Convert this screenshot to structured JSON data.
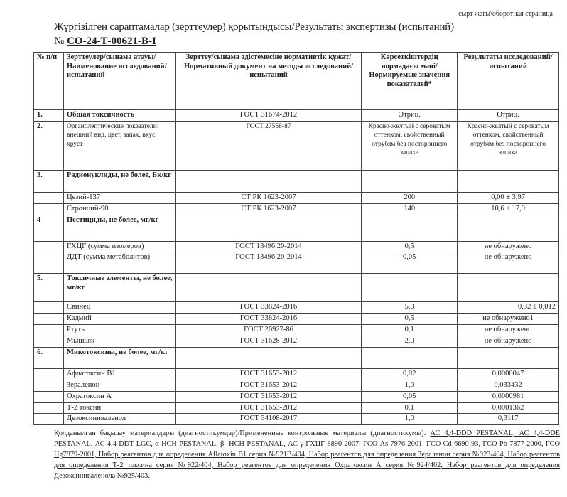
{
  "header": {
    "corner_note": "сырт жағы\\оборотная страница",
    "title": "Жүргізілген сараптамалар (зерттеулер) қорытындысы/Результаты экспертизы (испытаний)",
    "number_prefix": "№",
    "number": "СО-24-Т-00621-В-І"
  },
  "table": {
    "columns": [
      "№ п/п",
      "Зерттеулер/сынама атауы/Наименование исследований/ испытаний",
      "Зерттеу/сынама әдістемесіне нормативтік құжат/Нормативный документ на методы исследований/ испытаний",
      "Көрсеткіштердің нормадағы мәні/Нормируемые значения показателей*",
      "Результаты исследований/ испытаний"
    ],
    "rows": [
      {
        "num": "1.",
        "name": "Общая токсичность",
        "doc": "ГОСТ 31674-2012",
        "norm": "Отриц.",
        "result": "Отриц.",
        "bold": true
      },
      {
        "num": "2.",
        "name": "Органолептические показатели: внешний вид, цвет, запах, вкус, хруст",
        "doc": "ГОСТ 27558-87",
        "norm": "Красно-желтый с сероватым оттенком, свойственный отрубям без постороннего запаха",
        "result": "Красно-желтый с сероватым оттенком, свойственный отрубям без постороннего запаха"
      },
      {
        "num": "3.",
        "name": "Радионуклиды, не более, Бк/кг",
        "doc": "",
        "norm": "",
        "result": "",
        "bold": true
      },
      {
        "num": "",
        "name": "Цезий-137",
        "doc": "СТ РК 1623-2007",
        "norm": "200",
        "result": "0,00 ± 3,97"
      },
      {
        "num": "",
        "name": "Стронций-90",
        "doc": "СТ РК 1623-2007",
        "norm": "140",
        "result": "10,6 ± 17,9"
      },
      {
        "num": "4",
        "name": "Пестициды, не более, мг/кг",
        "doc": "",
        "norm": "",
        "result": "",
        "bold": true
      },
      {
        "num": "",
        "name": "ГХЦГ (сумма изомеров)",
        "doc": "ГОСТ 13496.20-2014",
        "norm": "0,5",
        "result": "не обнаружено"
      },
      {
        "num": "",
        "name": "ДДТ (сумма метаболитов)",
        "doc": "ГОСТ 13496.20-2014",
        "norm": "0,05",
        "result": "не обнаружено"
      },
      {
        "num": "5.",
        "name": "Токсичные элементы, не более, мг/кг",
        "doc": "",
        "norm": "",
        "result": "",
        "bold": true
      },
      {
        "num": "",
        "name": "Свинец",
        "doc": "ГОСТ 33824-2016",
        "norm": "5,0",
        "result": "0,32 ± 0,012"
      },
      {
        "num": "",
        "name": "Кадмий",
        "doc": "ГОСТ 33824-2016",
        "norm": "0,5",
        "result": "не обнаружено1"
      },
      {
        "num": "",
        "name": "Ртуть",
        "doc": "ГОСТ 26927-86",
        "norm": "0,1",
        "result": "не обнаружено"
      },
      {
        "num": "",
        "name": "Мышьяк",
        "doc": "ГОСТ 31628-2012",
        "norm": "2,0",
        "result": "не обнаружено"
      },
      {
        "num": "6.",
        "name": "Микотоксины, не более, мг/кг",
        "doc": "",
        "norm": "",
        "result": "",
        "bold": true
      },
      {
        "num": "",
        "name": "Афлатоксин В1",
        "doc": "ГОСТ 31653-2012",
        "norm": "0,02",
        "result": "0,0000047"
      },
      {
        "num": "",
        "name": "Зераленон",
        "doc": "ГОСТ 31653-2012",
        "norm": "1,0",
        "result": "0,033432"
      },
      {
        "num": "",
        "name": "Охратоксин А",
        "doc": "ГОСТ 31653-2012",
        "norm": "0,05",
        "result": "0,0000981"
      },
      {
        "num": "",
        "name": "Т-2 токсин",
        "doc": "ГОСТ 31653-2012",
        "norm": "0,1",
        "result": "0,0001362"
      },
      {
        "num": "",
        "name": "Дезоксиниваленол",
        "doc": "ГОСТ 34108-2017",
        "norm": "1,0",
        "result": "0,3117"
      }
    ]
  },
  "footer": {
    "label": "Қолданылған бақылау материалдары (диагностикумдар)/Примененные контрольные материалы (диагностикумы): ",
    "materials": "АС 4,4-DDD PESTANAL, АС 4,4-DDE PESTANAL, АС 4,4-DDT LGC, α-HCH PESTANAL, β- HCH PESTANAL, АС γ-ГХЦГ 8890-2007, ГСО As 7976-2001, ГСО Cd 6690-93, ГСО Pb 7877-2000, ГСО Hg7879-2001, Набор реагентов для определения Aflatoxin B1 серия №921B/404, Набор реагентов для определения Зераленон серия №923/404, Набор реагентов для определения Т-2 токсина серия №922/404, Набор реагентов для определения Охратоксин А серия №924/402, Набор реагентов для определения Дезоксиниваленола №925/403."
  }
}
